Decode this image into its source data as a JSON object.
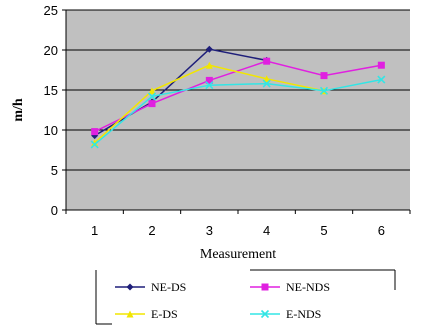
{
  "chart_data": {
    "type": "line",
    "title": "",
    "xlabel": "Measurement",
    "ylabel": "m/h",
    "x": [
      1,
      2,
      3,
      4,
      5,
      6
    ],
    "ylim": [
      0,
      25
    ],
    "yticks": [
      0,
      5,
      10,
      15,
      20,
      25
    ],
    "grid": true,
    "legend_position": "bottom",
    "series": [
      {
        "name": "NE-DS",
        "color": "#1f1f7a",
        "values": [
          9.3,
          13.5,
          20.1,
          18.7,
          null,
          null
        ]
      },
      {
        "name": "NE-NDS",
        "color": "#e020e0",
        "values": [
          9.8,
          13.3,
          16.2,
          18.6,
          16.8,
          18.1
        ]
      },
      {
        "name": "E-DS",
        "color": "#f2e600",
        "values": [
          8.4,
          14.9,
          18.1,
          16.4,
          14.9,
          null
        ]
      },
      {
        "name": "E-NDS",
        "color": "#33e5e5",
        "values": [
          8.2,
          14.2,
          15.6,
          15.8,
          14.9,
          16.3
        ]
      }
    ],
    "colors": {
      "plot_background": "#c0c0c0",
      "gridline": "#000000"
    }
  }
}
